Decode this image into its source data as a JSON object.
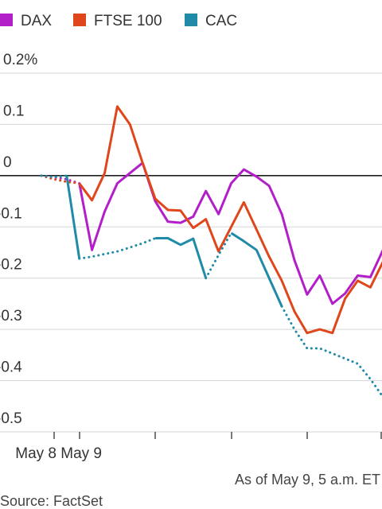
{
  "chart_data": {
    "type": "line",
    "ylim": [
      -0.5,
      0.2
    ],
    "y_ticks": [
      "0.2%",
      "0.1",
      "0",
      "-0.1",
      "-0.2",
      "-0.3",
      "-0.4",
      "-0.5"
    ],
    "y_tick_values": [
      0.2,
      0.1,
      0,
      -0.1,
      -0.2,
      -0.3,
      -0.4,
      -0.5
    ],
    "x_tick_labels": [
      "May 8",
      "May 9"
    ],
    "legend": {
      "placement": "top-left"
    },
    "grid": true,
    "note": "As of May 9, 5 a.m. ET",
    "source": "Source: FactSet",
    "series": [
      {
        "name": "DAX",
        "color": "#b21fc9",
        "gap_style": "dotted",
        "points": [
          [
            0,
            0
          ],
          [
            1,
            -0.003
          ],
          [
            2,
            -0.007
          ],
          [
            3,
            -0.015
          ],
          [
            4,
            -0.145
          ],
          [
            5,
            -0.07
          ],
          [
            6,
            -0.015
          ],
          [
            7,
            0.005
          ],
          [
            8,
            0.025
          ],
          [
            9,
            -0.05
          ],
          [
            10,
            -0.09
          ],
          [
            11,
            -0.092
          ],
          [
            12,
            -0.08
          ],
          [
            13,
            -0.03
          ],
          [
            14,
            -0.075
          ],
          [
            15,
            -0.015
          ],
          [
            16,
            0.012
          ],
          [
            17,
            -0.002
          ],
          [
            18,
            -0.02
          ],
          [
            19,
            -0.075
          ],
          [
            20,
            -0.165
          ],
          [
            21,
            -0.232
          ],
          [
            22,
            -0.195
          ],
          [
            23,
            -0.25
          ],
          [
            24,
            -0.23
          ],
          [
            25,
            -0.195
          ],
          [
            26,
            -0.198
          ],
          [
            27,
            -0.145
          ]
        ]
      },
      {
        "name": "FTSE 100",
        "color": "#e0461b",
        "gap_style": "dotted",
        "points": [
          [
            0,
            0
          ],
          [
            1,
            -0.007
          ],
          [
            2,
            -0.012
          ],
          [
            3,
            -0.015
          ],
          [
            4,
            -0.048
          ],
          [
            5,
            0.005
          ],
          [
            6,
            0.135
          ],
          [
            7,
            0.1
          ],
          [
            8,
            0.025
          ],
          [
            9,
            -0.045
          ],
          [
            10,
            -0.067
          ],
          [
            11,
            -0.068
          ],
          [
            12,
            -0.102
          ],
          [
            13,
            -0.085
          ],
          [
            14,
            -0.148
          ],
          [
            15,
            -0.1
          ],
          [
            16,
            -0.052
          ],
          [
            17,
            -0.105
          ],
          [
            18,
            -0.158
          ],
          [
            19,
            -0.205
          ],
          [
            20,
            -0.265
          ],
          [
            21,
            -0.307
          ],
          [
            22,
            -0.3
          ],
          [
            23,
            -0.307
          ],
          [
            24,
            -0.24
          ],
          [
            25,
            -0.205
          ],
          [
            26,
            -0.218
          ],
          [
            27,
            -0.168
          ]
        ]
      },
      {
        "name": "CAC",
        "color": "#1f8ba8",
        "gap_style": "dotted",
        "points": [
          [
            0,
            0
          ],
          [
            1,
            -0.003
          ],
          [
            2,
            0.0
          ],
          [
            3,
            -0.162
          ],
          [
            4,
            -0.158
          ],
          [
            5,
            -0.153
          ],
          [
            6,
            -0.148
          ],
          [
            7,
            -0.14
          ],
          [
            8,
            -0.132
          ],
          [
            9,
            -0.122
          ],
          [
            10,
            -0.122
          ],
          [
            11,
            -0.135
          ],
          [
            12,
            -0.123
          ],
          [
            13,
            -0.2
          ],
          [
            14,
            -0.155
          ],
          [
            15,
            -0.112
          ],
          [
            16,
            -0.128
          ],
          [
            17,
            -0.145
          ],
          [
            18,
            -0.2
          ],
          [
            19,
            -0.255
          ],
          [
            20,
            -0.3
          ],
          [
            21,
            -0.337
          ],
          [
            22,
            -0.337
          ],
          [
            23,
            -0.347
          ],
          [
            24,
            -0.357
          ],
          [
            25,
            -0.367
          ],
          [
            26,
            -0.397
          ],
          [
            27,
            -0.432
          ]
        ],
        "dotted_segments": [
          [
            0,
            2
          ],
          [
            3,
            9
          ],
          [
            13,
            15
          ],
          [
            19,
            27
          ]
        ]
      }
    ],
    "dotted_segments": {
      "DAX": [
        [
          0,
          3
        ]
      ],
      "FTSE 100": [
        [
          0,
          3
        ]
      ]
    }
  }
}
